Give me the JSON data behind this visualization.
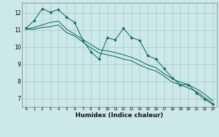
{
  "xlabel": "Humidex (Indice chaleur)",
  "bg_color": "#cce8e8",
  "grid_color": "#aacccc",
  "line_color": "#1a6b6b",
  "xlim": [
    -0.5,
    23.5
  ],
  "ylim": [
    6.5,
    12.6
  ],
  "yticks": [
    7,
    8,
    9,
    10,
    11,
    12
  ],
  "xticks": [
    0,
    1,
    2,
    3,
    4,
    5,
    6,
    7,
    8,
    9,
    10,
    11,
    12,
    13,
    14,
    15,
    16,
    17,
    18,
    19,
    20,
    21,
    22,
    23
  ],
  "line1_x": [
    0,
    1,
    2,
    3,
    4,
    5,
    6,
    7,
    8,
    9,
    10,
    11,
    12,
    13,
    14,
    15,
    16,
    17,
    18,
    19,
    20,
    21,
    22,
    23
  ],
  "line1_y": [
    11.1,
    11.55,
    12.25,
    12.05,
    12.2,
    11.75,
    11.45,
    10.4,
    9.72,
    9.3,
    10.55,
    10.42,
    11.1,
    10.55,
    10.4,
    9.5,
    9.3,
    8.75,
    8.2,
    7.8,
    7.8,
    7.3,
    6.95,
    6.65
  ],
  "line2_x": [
    0,
    1,
    2,
    3,
    4,
    5,
    6,
    7,
    8,
    9,
    10,
    11,
    12,
    13,
    14,
    15,
    16,
    17,
    18,
    19,
    20,
    21,
    22,
    23
  ],
  "line2_y": [
    11.05,
    11.15,
    11.3,
    11.45,
    11.52,
    11.05,
    10.75,
    10.45,
    10.15,
    9.85,
    9.78,
    9.68,
    9.55,
    9.4,
    9.2,
    8.95,
    8.8,
    8.45,
    8.15,
    7.95,
    7.8,
    7.55,
    7.25,
    6.85
  ],
  "line3_x": [
    0,
    1,
    2,
    3,
    4,
    5,
    6,
    7,
    8,
    9,
    10,
    11,
    12,
    13,
    14,
    15,
    16,
    17,
    18,
    19,
    20,
    21,
    22,
    23
  ],
  "line3_y": [
    11.05,
    11.05,
    11.15,
    11.2,
    11.3,
    10.85,
    10.65,
    10.3,
    9.95,
    9.65,
    9.55,
    9.45,
    9.3,
    9.2,
    8.95,
    8.75,
    8.6,
    8.3,
    7.95,
    7.8,
    7.6,
    7.4,
    7.05,
    6.7
  ]
}
